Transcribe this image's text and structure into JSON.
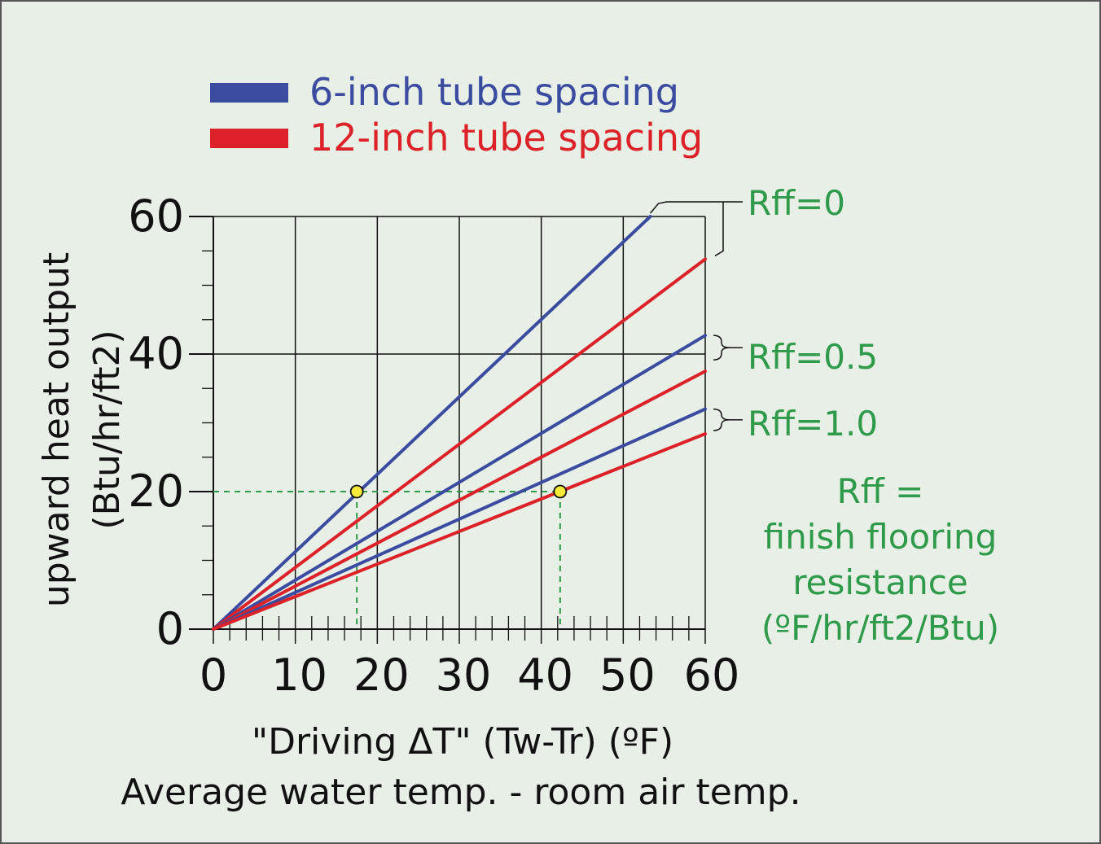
{
  "chart_data": {
    "type": "line",
    "title": "",
    "xlabel": "\"Driving ΔT\"  (Tw-Tr) (ºF)",
    "xlabel_2": "Average water temp. - room air temp.",
    "ylabel": "upward heat output",
    "ylabel_2": "(Btu/hr/ft2)",
    "xlim": [
      0,
      60
    ],
    "ylim": [
      0,
      60
    ],
    "x_ticks": [
      "0",
      "10",
      "20",
      "30",
      "40",
      "50",
      "60"
    ],
    "y_ticks": [
      "0",
      "20",
      "40",
      "60"
    ],
    "grid": true,
    "legend_position": "top-left",
    "legend": [
      {
        "label": "6-inch tube spacing",
        "color": "#3a4ba0"
      },
      {
        "label": "12-inch tube spacing",
        "color": "#dc2228"
      }
    ],
    "series": [
      {
        "spacing": "6-inch",
        "rff": "0",
        "color": "#3a4ba0",
        "x": [
          0,
          53.3
        ],
        "y": [
          0,
          60
        ]
      },
      {
        "spacing": "12-inch",
        "rff": "0",
        "color": "#dc2228",
        "x": [
          0,
          60
        ],
        "y": [
          0,
          53.8
        ]
      },
      {
        "spacing": "6-inch",
        "rff": "0.5",
        "color": "#3a4ba0",
        "x": [
          0,
          60
        ],
        "y": [
          0,
          42.7
        ]
      },
      {
        "spacing": "12-inch",
        "rff": "0.5",
        "color": "#dc2228",
        "x": [
          0,
          60
        ],
        "y": [
          0,
          37.5
        ]
      },
      {
        "spacing": "6-inch",
        "rff": "1.0",
        "color": "#3a4ba0",
        "x": [
          0,
          60
        ],
        "y": [
          0,
          32.0
        ]
      },
      {
        "spacing": "12-inch",
        "rff": "1.0",
        "color": "#dc2228",
        "x": [
          0,
          60
        ],
        "y": [
          0,
          28.4
        ]
      }
    ],
    "rff_labels": [
      "Rff=0",
      "Rff=0.5",
      "Rff=1.0"
    ],
    "rff_note": [
      "Rff =",
      "finish flooring",
      "resistance",
      "(ºF/hr/ft2/Btu)"
    ],
    "highlight_points": [
      {
        "x": 17.5,
        "y": 20,
        "color": "#f5ea3b"
      },
      {
        "x": 42.3,
        "y": 20,
        "color": "#f5ea3b"
      }
    ],
    "guide_color": "#2e9a4a"
  }
}
